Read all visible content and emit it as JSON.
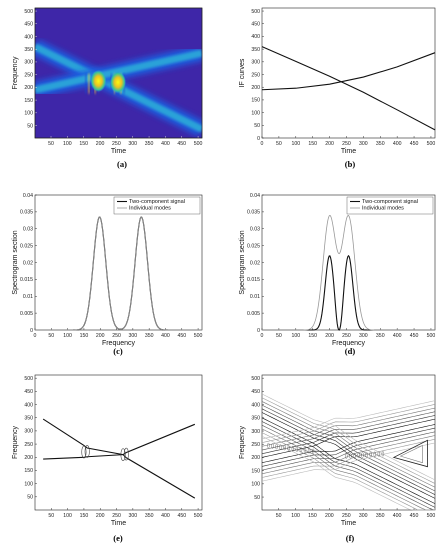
{
  "panels": [
    {
      "id": "a",
      "label": "(a)",
      "xlabel": "Time",
      "ylabel": "Frequency"
    },
    {
      "id": "b",
      "label": "(b)",
      "xlabel": "Time",
      "ylabel": "IF curves"
    },
    {
      "id": "c",
      "label": "(c)",
      "xlabel": "Frequency",
      "ylabel": "Spectrogram section"
    },
    {
      "id": "d",
      "label": "(d)",
      "xlabel": "Frequency",
      "ylabel": "Spectrogram section"
    },
    {
      "id": "e",
      "label": "(e)",
      "xlabel": "Time",
      "ylabel": "Frequency"
    },
    {
      "id": "f",
      "label": "(f)",
      "xlabel": "Time",
      "ylabel": "Frequency"
    }
  ],
  "chart_data": [
    {
      "panel": "a",
      "type": "heatmap",
      "xlabel": "Time",
      "ylabel": "Frequency",
      "xlim": [
        1,
        512
      ],
      "ylim": [
        1,
        512
      ],
      "xticks": [
        50,
        100,
        150,
        200,
        250,
        300,
        350,
        400,
        450,
        500
      ],
      "yticks": [
        50,
        100,
        150,
        200,
        250,
        300,
        350,
        400,
        450,
        500
      ],
      "ridges": [
        {
          "t": [
            1,
            512
          ],
          "f": [
            360,
            35
          ]
        },
        {
          "t": [
            1,
            512
          ],
          "f": [
            190,
            335
          ]
        }
      ],
      "colors": {
        "background": "#3e26a8",
        "ridge": "#2aa2d8",
        "peak": "#f9fb0e"
      }
    },
    {
      "panel": "b",
      "type": "line",
      "xlabel": "Time",
      "ylabel": "IF curves",
      "xlim": [
        0,
        512
      ],
      "ylim": [
        0,
        512
      ],
      "xticks": [
        0,
        50,
        100,
        150,
        200,
        250,
        300,
        350,
        400,
        450,
        500
      ],
      "yticks": [
        0,
        50,
        100,
        150,
        200,
        250,
        300,
        350,
        400,
        450,
        500
      ],
      "series": [
        {
          "x": [
            0,
            100,
            200,
            300,
            400,
            512
          ],
          "y": [
            360,
            302,
            243,
            180,
            111,
            32
          ]
        },
        {
          "x": [
            0,
            100,
            200,
            300,
            400,
            512
          ],
          "y": [
            190,
            196,
            212,
            240,
            280,
            336
          ]
        }
      ]
    },
    {
      "panel": "c",
      "type": "line",
      "xlabel": "Frequency",
      "ylabel": "Spectrogram section",
      "xlim": [
        0,
        512
      ],
      "ylim": [
        0,
        0.04
      ],
      "xticks": [
        0,
        50,
        100,
        150,
        200,
        250,
        300,
        350,
        400,
        450,
        500
      ],
      "yticks": [
        0,
        0.005,
        0.01,
        0.015,
        0.02,
        0.025,
        0.03,
        0.035,
        0.04
      ],
      "legend": [
        "Two-component signal",
        "Individual modes"
      ],
      "legend_position": "top-right",
      "series": [
        {
          "name": "Two-component signal",
          "peaks": [
            {
              "mu": 198,
              "amp": 0.0335,
              "sigma": 19
            },
            {
              "mu": 326,
              "amp": 0.0335,
              "sigma": 19
            }
          ]
        },
        {
          "name": "Individual modes",
          "peaks": [
            {
              "mu": 198,
              "amp": 0.0335,
              "sigma": 19
            },
            {
              "mu": 326,
              "amp": 0.0335,
              "sigma": 19
            }
          ]
        }
      ]
    },
    {
      "panel": "d",
      "type": "line",
      "xlabel": "Frequency",
      "ylabel": "Spectrogram section",
      "xlim": [
        0,
        512
      ],
      "ylim": [
        0,
        0.04
      ],
      "xticks": [
        0,
        50,
        100,
        150,
        200,
        250,
        300,
        350,
        400,
        450,
        500
      ],
      "yticks": [
        0,
        0.005,
        0.01,
        0.015,
        0.02,
        0.025,
        0.03,
        0.035,
        0.04
      ],
      "legend": [
        "Two-component signal",
        "Individual modes"
      ],
      "legend_position": "top-right",
      "series": [
        {
          "name": "Two-component signal",
          "peaks": [
            {
              "mu": 200,
              "amp": 0.022,
              "sigma": 13
            },
            {
              "mu": 256,
              "amp": 0.022,
              "sigma": 13
            }
          ],
          "dip": {
            "mu": 228,
            "amp": 0.0,
            "sigma": 6
          }
        },
        {
          "name": "Individual modes",
          "peaks": [
            {
              "mu": 200,
              "amp": 0.0335,
              "sigma": 19
            },
            {
              "mu": 256,
              "amp": 0.0335,
              "sigma": 19
            }
          ]
        }
      ]
    },
    {
      "panel": "e",
      "type": "line",
      "xlabel": "Time",
      "ylabel": "Frequency",
      "xlim": [
        0,
        512
      ],
      "ylim": [
        0,
        512
      ],
      "xticks": [
        50,
        100,
        150,
        200,
        250,
        300,
        350,
        400,
        450,
        500
      ],
      "yticks": [
        50,
        100,
        150,
        200,
        250,
        300,
        350,
        400,
        450,
        500
      ],
      "series": [
        {
          "x": [
            25,
            150,
            160,
            270,
            280,
            490
          ],
          "y": [
            345,
            245,
            235,
            210,
            198,
            45
          ]
        },
        {
          "x": [
            25,
            150,
            160,
            270,
            280,
            490
          ],
          "y": [
            193,
            200,
            202,
            210,
            218,
            325
          ]
        }
      ]
    },
    {
      "panel": "f",
      "type": "line",
      "xlabel": "Time",
      "ylabel": "Frequency",
      "xlim": [
        1,
        512
      ],
      "ylim": [
        1,
        512
      ],
      "xticks": [
        50,
        100,
        150,
        200,
        250,
        300,
        350,
        400,
        450,
        500
      ],
      "yticks": [
        50,
        100,
        150,
        200,
        250,
        300,
        350,
        400,
        450,
        500
      ],
      "contour_levels": 6
    }
  ]
}
